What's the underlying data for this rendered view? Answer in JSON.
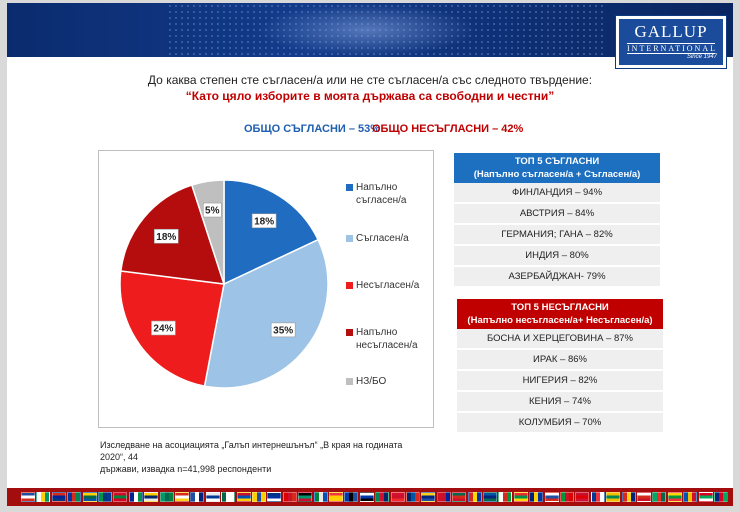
{
  "question": "До каква степен сте съгласен/а или не сте съгласен/а със следното твърдение:",
  "statement": "“Като цяло изборите в моята държава са свободни и честни”",
  "totals": {
    "agree": "ОБЩО СЪГЛАСНИ – 53%",
    "disagree": "ОБЩО НЕСЪГЛАСНИ – 42%"
  },
  "logo": {
    "brand": "GALLUP",
    "sub": "INTERNATIONAL",
    "since": "Since 1947"
  },
  "chart_data": {
    "type": "pie",
    "title": "",
    "slices": [
      {
        "name": "Напълно съгласен/а",
        "value": 18,
        "label": "18%",
        "color": "#1f6cc1"
      },
      {
        "name": "Съгласен/а",
        "value": 35,
        "label": "35%",
        "color": "#9dc3e6"
      },
      {
        "name": "Несъгласен/а",
        "value": 24,
        "label": "24%",
        "color": "#ee1c1c"
      },
      {
        "name": "Напълно несъгласен/а",
        "value": 18,
        "label": "18%",
        "color": "#b50d0d"
      },
      {
        "name": "НЗ/БО",
        "value": 5,
        "label": "5%",
        "color": "#bfbfbf"
      }
    ],
    "legend": [
      {
        "line1": "Напълно",
        "line2": "съгласен/а"
      },
      {
        "line1": "Съгласен/а",
        "line2": ""
      },
      {
        "line1": "Несъгласен/а",
        "line2": ""
      },
      {
        "line1": "Напълно",
        "line2": "несъгласен/а"
      },
      {
        "line1": "НЗ/БО",
        "line2": ""
      }
    ],
    "legend_position": "right"
  },
  "top_agree": {
    "title1": "ТОП 5 СЪГЛАСНИ",
    "title2": "(Напълно съгласен/а + Съгласен/а)",
    "rows": [
      "ФИНЛАНДИЯ – 94%",
      "АВСТРИЯ – 84%",
      "ГЕРМАНИЯ; ГАНА – 82%",
      "ИНДИЯ – 80%",
      "АЗЕРБАЙДЖАН- 79%"
    ]
  },
  "top_disagree": {
    "title1": "ТОП 5 НЕСЪГЛАСНИ",
    "title2": "(Напълно несъгласен/а+ Несъгласен/а)",
    "rows": [
      "БОСНА И ХЕРЦЕГОВИНА – 87%",
      "ИРАК – 86%",
      "НИГЕРИЯ – 82%",
      "КЕНИЯ – 74%",
      "КОЛУМБИЯ – 70%"
    ]
  },
  "footnote": {
    "line1": "Изследване на асоциацията „Галъп интернешънъл“ „В края на годината 2020“, 44",
    "line2": "държави,  извадка n=41,998 респонденти"
  },
  "flag_colors": [
    "#1f4fa0",
    "#ffffff",
    "#d52b1e",
    "#0033a0",
    "#ffd100",
    "#009246",
    "#ce1126",
    "#002395",
    "#ffce00",
    "#00966e",
    "#d52b1e",
    "#1f4fa0",
    "#e8e8e8",
    "#006847",
    "#ce1126",
    "#ffcc00",
    "#003580",
    "#dd0000",
    "#000000",
    "#00843d",
    "#ef3340",
    "#0038a8",
    "#ffffff",
    "#008751",
    "#d21034",
    "#002868",
    "#fcd116",
    "#ce1126",
    "#006a4e",
    "#d52b1e",
    "#0055a4",
    "#ffffff",
    "#ef2b2d",
    "#00247d",
    "#ffffff",
    "#009739",
    "#c8102e",
    "#003893",
    "#f1bf00",
    "#da291c",
    "#ffffff",
    "#00a95c",
    "#ffd700",
    "#0052b4",
    "#d80027",
    "#00247d"
  ]
}
